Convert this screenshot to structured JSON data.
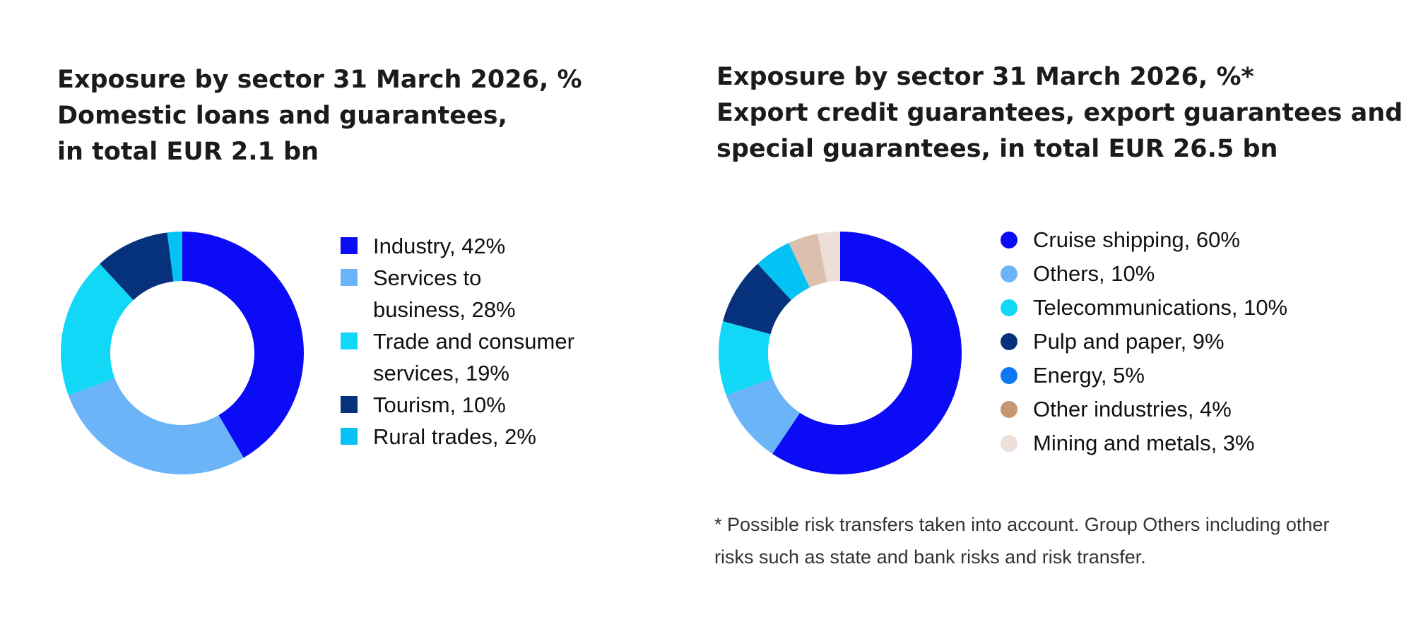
{
  "chart_data": [
    {
      "type": "pie",
      "title_lines": [
        "Exposure by sector 31 March 2026, %",
        "Domestic loans and guarantees,",
        "in total EUR 2.1 bn"
      ],
      "variant": "donut",
      "legend_position": "right",
      "start": "top",
      "direction": "clockwise",
      "slices": [
        {
          "name": "Industry",
          "value": 42,
          "color": "#0b0bf5",
          "label_lines": [
            "Industry, 42%"
          ]
        },
        {
          "name": "Services to business",
          "value": 28,
          "color": "#6cb4f8",
          "label_lines": [
            "Services to",
            "business, 28%"
          ]
        },
        {
          "name": "Trade and consumer services",
          "value": 19,
          "color": "#12d8f8",
          "label_lines": [
            "Trade and consumer",
            "services, 19%"
          ]
        },
        {
          "name": "Tourism",
          "value": 10,
          "color": "#06317b",
          "label_lines": [
            "Tourism, 10%"
          ]
        },
        {
          "name": "Rural trades",
          "value": 2,
          "color": "#05c2f5",
          "label_lines": [
            "Rural trades, 2%"
          ]
        }
      ]
    },
    {
      "type": "pie",
      "title_lines": [
        "Exposure by sector 31 March 2026, %*",
        "Export credit guarantees, export guarantees and",
        "special guarantees, in total EUR 26.5 bn"
      ],
      "variant": "donut",
      "legend_position": "right",
      "start": "top",
      "direction": "clockwise",
      "slices": [
        {
          "name": "Cruise shipping",
          "value": 60,
          "color": "#0b0bf5",
          "label_lines": [
            "Cruise shipping, 60%"
          ]
        },
        {
          "name": "Others",
          "value": 10,
          "color": "#6cb4f8",
          "label_lines": [
            "Others, 10%"
          ]
        },
        {
          "name": "Telecommunications",
          "value": 10,
          "color": "#12d8f8",
          "label_lines": [
            "Telecommunications, 10%"
          ]
        },
        {
          "name": "Pulp and paper",
          "value": 9,
          "color": "#06317b",
          "label_lines": [
            "Pulp and paper, 9%"
          ]
        },
        {
          "name": "Energy",
          "value": 5,
          "color": "#05c2f5",
          "legend_color": "#0e78f2",
          "label_lines": [
            "Energy, 5%"
          ]
        },
        {
          "name": "Other industries",
          "value": 4,
          "color": "#ddbfae",
          "legend_color": "#c69775",
          "label_lines": [
            "Other industries, 4%"
          ]
        },
        {
          "name": "Mining and metals",
          "value": 3,
          "color": "#ecdfd8",
          "label_lines": [
            "Mining and metals, 3%"
          ]
        }
      ],
      "footnote_lines": [
        "* Possible risk transfers taken into account. Group Others including other",
        "risks such as state and bank risks and risk transfer."
      ]
    }
  ]
}
